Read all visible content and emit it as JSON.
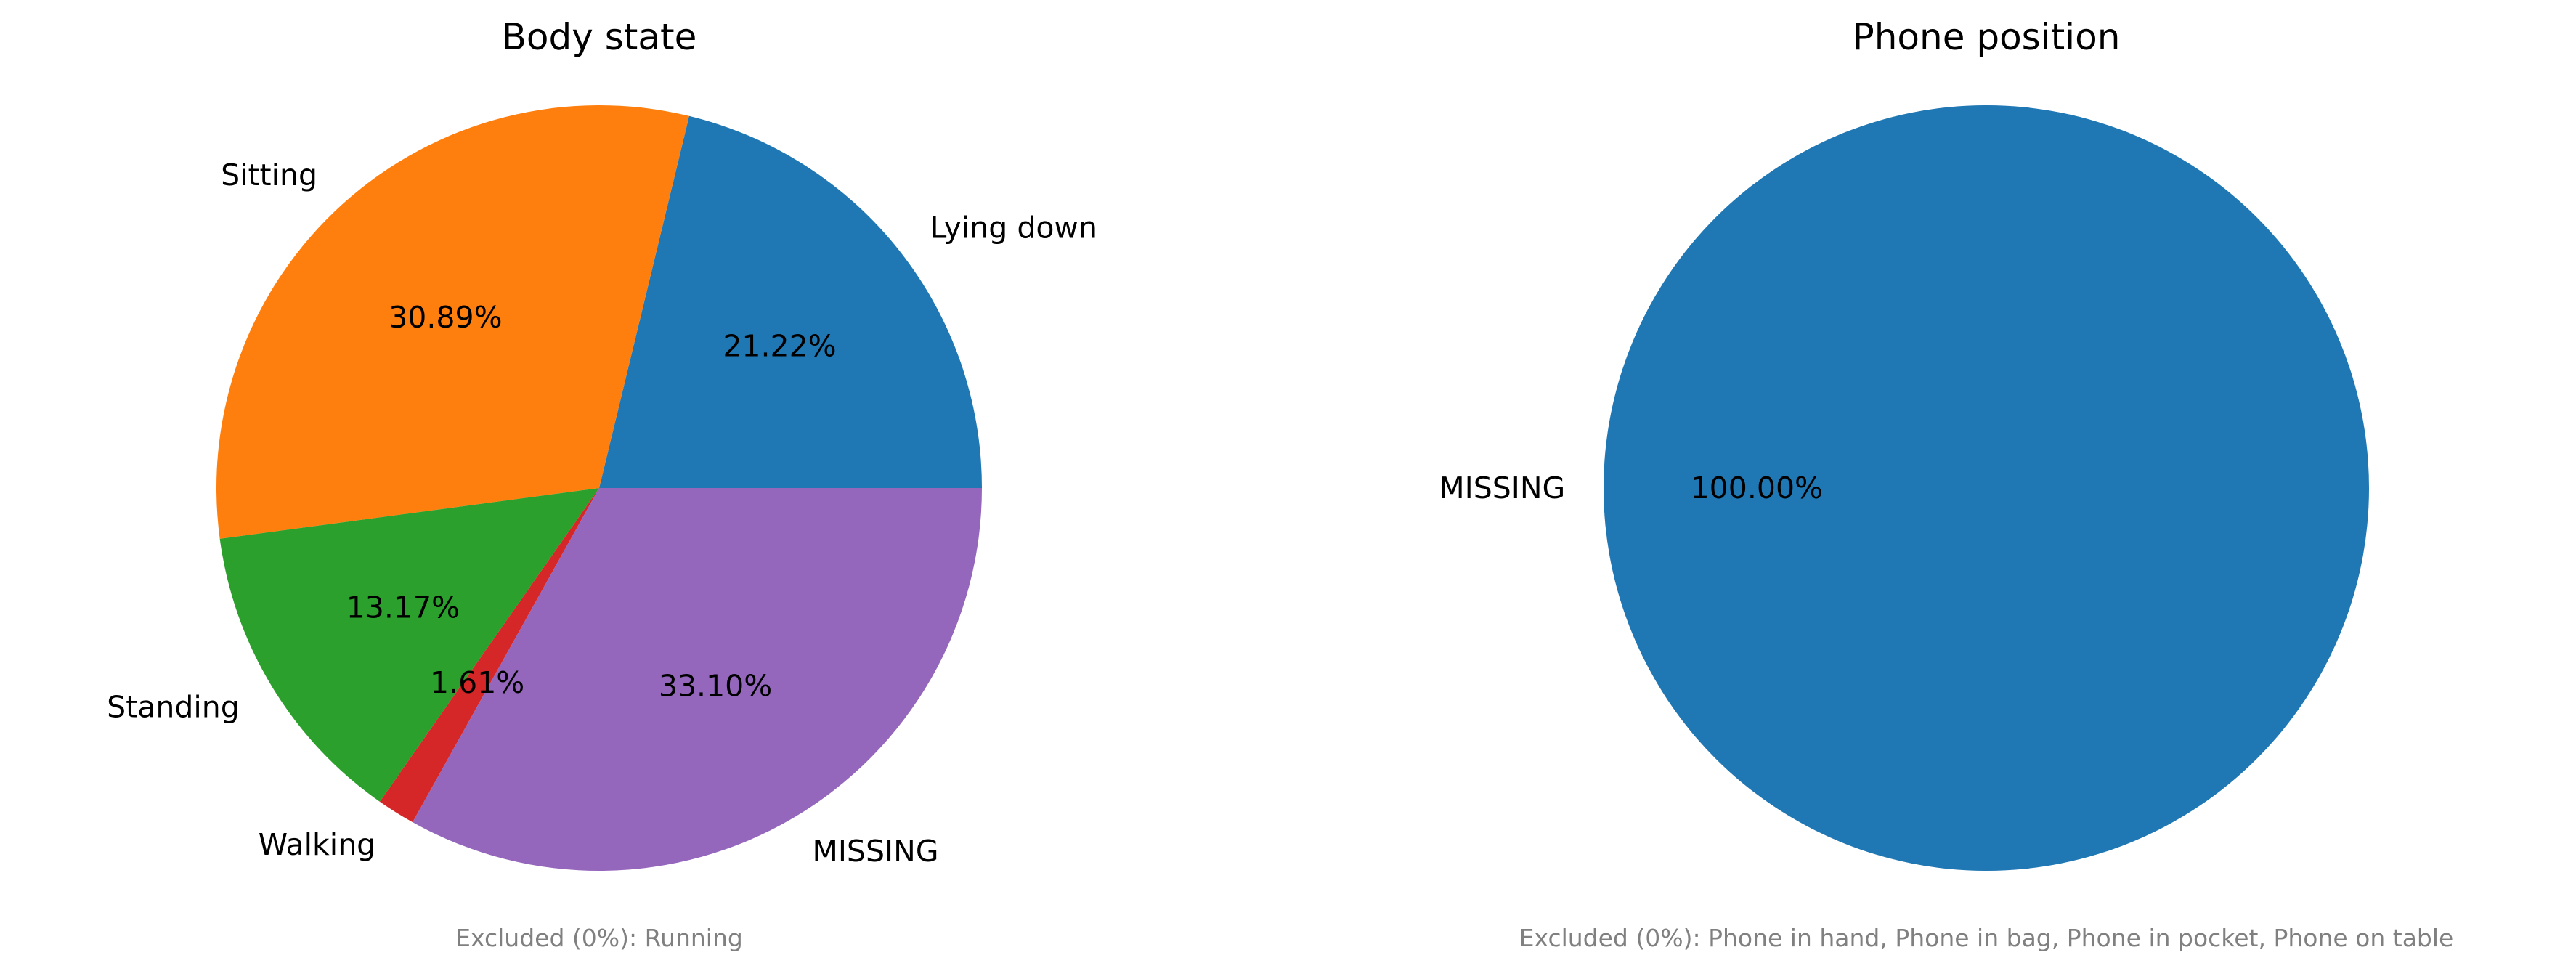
{
  "chart_data": [
    {
      "type": "pie",
      "title": "Body state",
      "start_angle_deg": 0,
      "direction": "counterclockwise",
      "slices": [
        {
          "label": "Lying down",
          "value": 21.22,
          "pct_text": "21.22%",
          "color": "#1f77b4"
        },
        {
          "label": "Sitting",
          "value": 30.89,
          "pct_text": "30.89%",
          "color": "#ff7f0e"
        },
        {
          "label": "Standing",
          "value": 13.17,
          "pct_text": "13.17%",
          "color": "#2ca02c"
        },
        {
          "label": "Walking",
          "value": 1.61,
          "pct_text": "1.61%",
          "color": "#d62728"
        },
        {
          "label": "MISSING",
          "value": 33.1,
          "pct_text": "33.10%",
          "color": "#9467bd"
        }
      ],
      "note": "Excluded (0%): Running"
    },
    {
      "type": "pie",
      "title": "Phone position",
      "start_angle_deg": 0,
      "direction": "counterclockwise",
      "slices": [
        {
          "label": "MISSING",
          "value": 100.0,
          "pct_text": "100.00%",
          "color": "#1f77b4"
        }
      ],
      "note": "Excluded (0%): Phone in hand, Phone in bag, Phone in pocket, Phone on table"
    }
  ]
}
